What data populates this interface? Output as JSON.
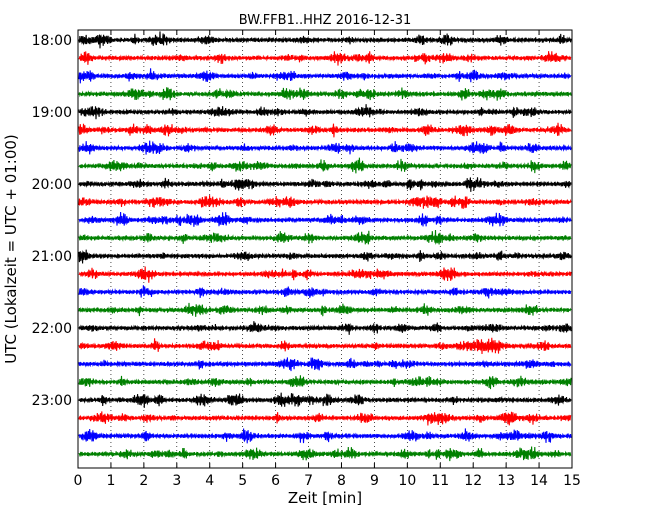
{
  "chart_data": {
    "type": "line",
    "title": "BW.FFB1..HHZ 2016-12-31",
    "xlabel": "Zeit  [min]",
    "ylabel": "UTC (Lokalzeit = UTC + 01:00)",
    "xlim": [
      0,
      15
    ],
    "x_ticks": [
      "0",
      "1",
      "2",
      "3",
      "4",
      "5",
      "6",
      "7",
      "8",
      "9",
      "10",
      "11",
      "12",
      "13",
      "14",
      "15"
    ],
    "y_ticks": [
      "18:00",
      "19:00",
      "20:00",
      "21:00",
      "22:00",
      "23:00"
    ],
    "vertical_grid": "dotted at each minute",
    "trace_interval_min": 15,
    "trace_start": "18:00",
    "trace_end": "23:45",
    "colors_cycle": [
      "#000000",
      "#ff0000",
      "#0000ff",
      "#008000"
    ],
    "series": [
      {
        "start": "18:00",
        "color": "#000000"
      },
      {
        "start": "18:15",
        "color": "#ff0000"
      },
      {
        "start": "18:30",
        "color": "#0000ff"
      },
      {
        "start": "18:45",
        "color": "#008000"
      },
      {
        "start": "19:00",
        "color": "#000000"
      },
      {
        "start": "19:15",
        "color": "#ff0000"
      },
      {
        "start": "19:30",
        "color": "#0000ff"
      },
      {
        "start": "19:45",
        "color": "#008000"
      },
      {
        "start": "20:00",
        "color": "#000000"
      },
      {
        "start": "20:15",
        "color": "#ff0000"
      },
      {
        "start": "20:30",
        "color": "#0000ff"
      },
      {
        "start": "20:45",
        "color": "#008000"
      },
      {
        "start": "21:00",
        "color": "#000000"
      },
      {
        "start": "21:15",
        "color": "#ff0000"
      },
      {
        "start": "21:30",
        "color": "#0000ff"
      },
      {
        "start": "21:45",
        "color": "#008000"
      },
      {
        "start": "22:00",
        "color": "#000000"
      },
      {
        "start": "22:15",
        "color": "#ff0000"
      },
      {
        "start": "22:30",
        "color": "#0000ff"
      },
      {
        "start": "22:45",
        "color": "#008000"
      },
      {
        "start": "23:00",
        "color": "#000000"
      },
      {
        "start": "23:15",
        "color": "#ff0000"
      },
      {
        "start": "23:30",
        "color": "#0000ff"
      },
      {
        "start": "23:45",
        "color": "#008000"
      }
    ]
  }
}
